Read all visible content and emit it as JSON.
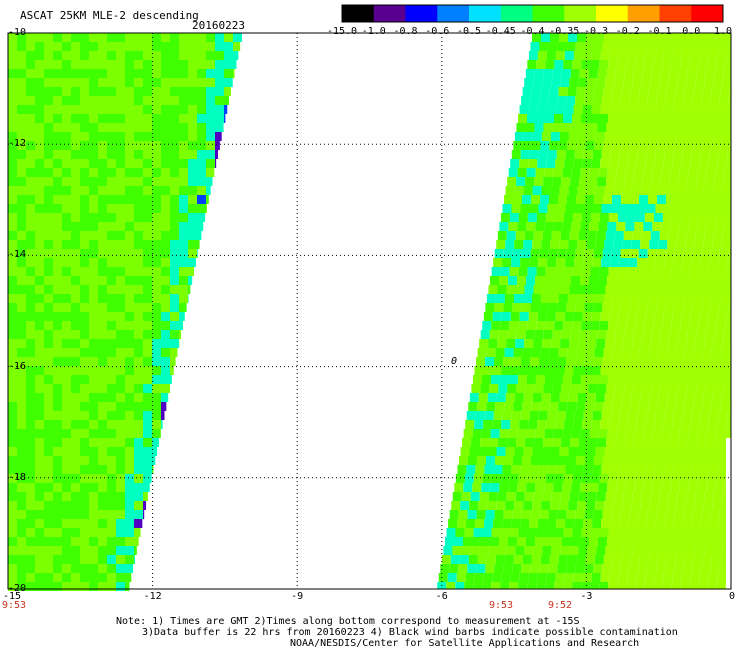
{
  "title": "ASCAT 25KM MLE-2 descending",
  "date": "20160223",
  "colorbar": {
    "labels": [
      "-15.0",
      "-1.0",
      "-0.8",
      "-0.6",
      "-0.5",
      "-0.45",
      "-0.4",
      "-0.35",
      "-0.3",
      "-0.2",
      "-0.1",
      "0.0",
      "1.0"
    ],
    "colors": [
      "#000000",
      "#5a0090",
      "#0000ff",
      "#0080ff",
      "#00e0ff",
      "#00ff80",
      "#40ff00",
      "#a0ff00",
      "#ffff00",
      "#ffa000",
      "#ff4000",
      "#ff0000"
    ]
  },
  "lat_labels": [
    "-10",
    "-12",
    "-14",
    "-16",
    "-18",
    "-20"
  ],
  "lon_labels": [
    "-15",
    "-12",
    "-9",
    "-6",
    "-3",
    "0"
  ],
  "times": {
    "left": "9:53",
    "swath_mid": "9:53",
    "swath_right": "9:52"
  },
  "notes": [
    "Note: 1) Times are GMT 2)Times along bottom correspond to measurement at -15S",
    "3)Data buffer is 22 hrs from 20160223 4) Black wind barbs indicate possible contamination",
    "NOAA/NESDIS/Center for Satellite Applications and Research"
  ],
  "island_marker": "0",
  "colors": {
    "field_main": "#7cff00",
    "field_alt": "#40ff00",
    "field_cyan": "#00ffc0",
    "field_blue": "#0040ff",
    "field_purple": "#5000c0"
  }
}
